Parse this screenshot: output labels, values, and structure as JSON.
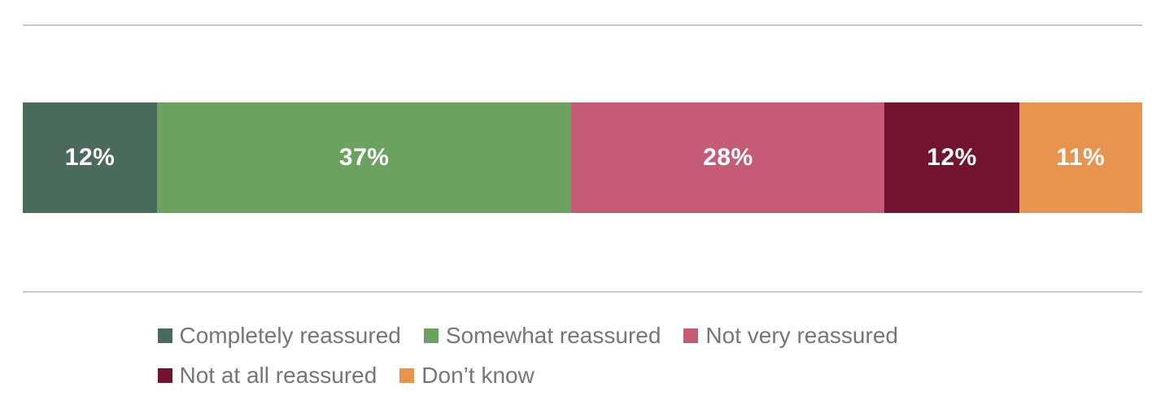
{
  "chart_data": {
    "type": "bar",
    "variant": "stacked-horizontal",
    "title": "",
    "xlabel": "",
    "ylabel": "",
    "axis_visible": false,
    "grid": false,
    "value_label_color": "#ffffff",
    "total": 100,
    "legend_position": "bottom",
    "series": [
      {
        "name": "Completely reassured",
        "value": 12,
        "label": "12%",
        "color": "#4a6b5c"
      },
      {
        "name": "Somewhat reassured",
        "value": 37,
        "label": "37%",
        "color": "#6ba25f"
      },
      {
        "name": "Not very reassured",
        "value": 28,
        "label": "28%",
        "color": "#c55b76"
      },
      {
        "name": "Not at all reassured",
        "value": 12,
        "label": "12%",
        "color": "#72142f"
      },
      {
        "name": "Don’t know",
        "value": 11,
        "label": "11%",
        "color": "#e9944e"
      }
    ]
  },
  "style": {
    "divider_color": "#c9c9c9",
    "legend_text_color": "#767676",
    "background": "#ffffff"
  }
}
